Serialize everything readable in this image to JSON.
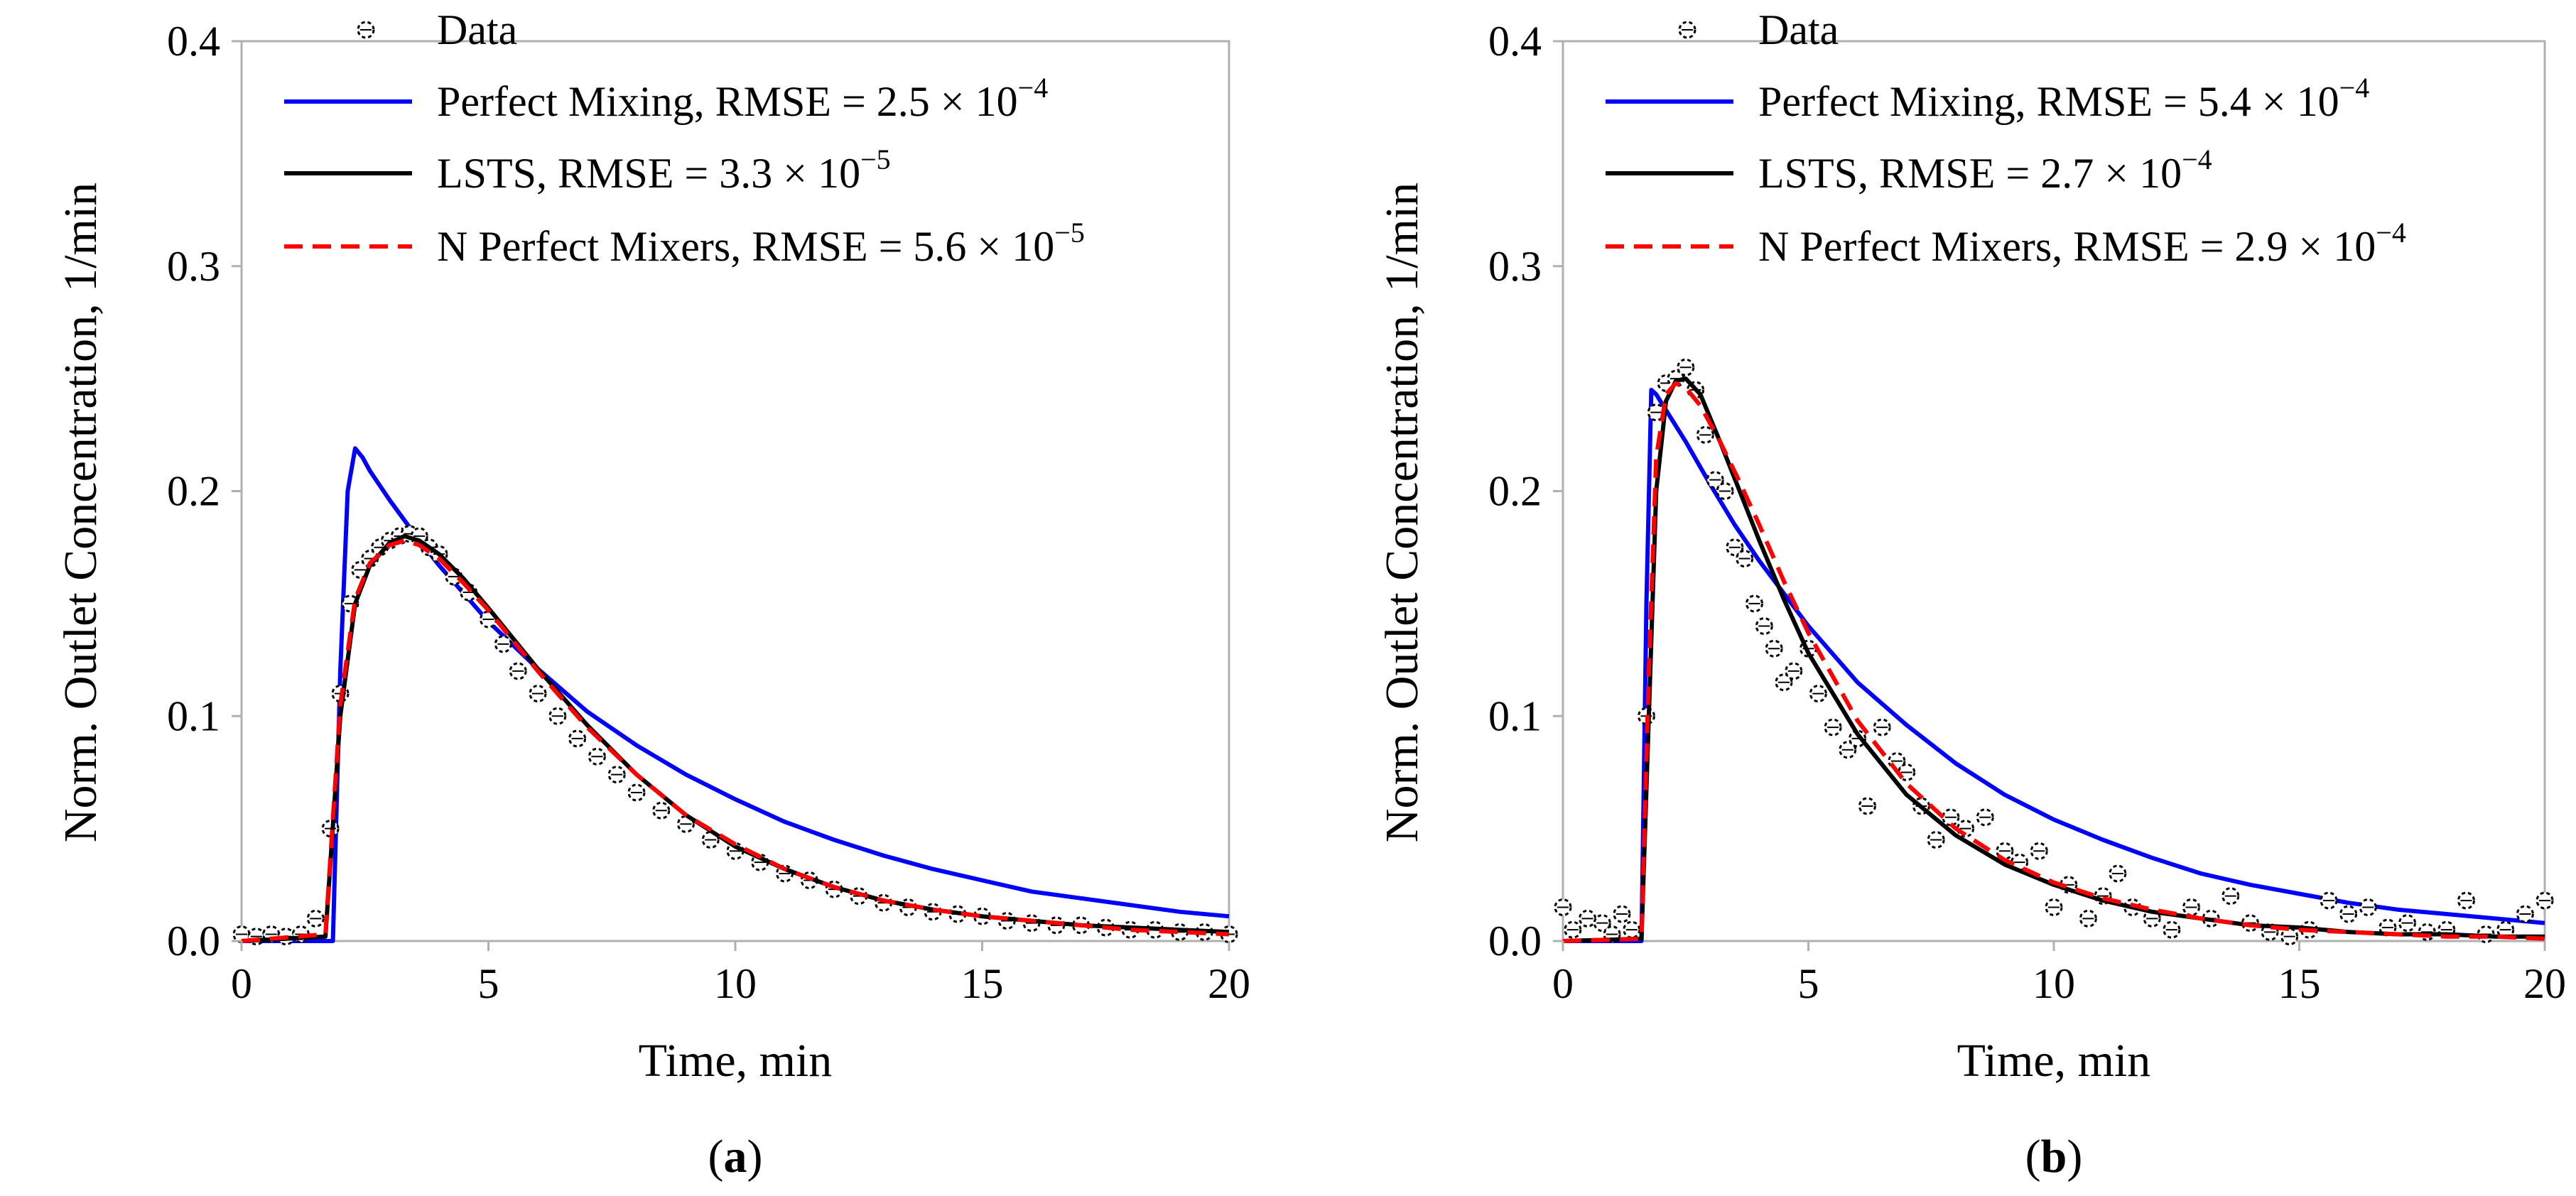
{
  "figure": {
    "panel_labels": [
      "a",
      "b"
    ]
  },
  "chart_data": [
    {
      "panel": "a",
      "type": "line",
      "xlabel": "Time,  min",
      "ylabel": "Norm. Outlet Concentration, 1/min",
      "xlim": [
        0,
        20
      ],
      "ylim": [
        0,
        0.4
      ],
      "xticks": [
        "0",
        "5",
        "10",
        "15",
        "20"
      ],
      "yticks": [
        "0.0",
        "0.1",
        "0.2",
        "0.3",
        "0.4"
      ],
      "grid": false,
      "legend_position": "top-left",
      "legend": [
        {
          "label": "Data",
          "base": "Data",
          "exp": ""
        },
        {
          "label": "Perfect Mixing, RMSE = 2.5 × 10−4",
          "base": "Perfect Mixing, RMSE = 2.5 × 10",
          "exp": "−4"
        },
        {
          "label": "LSTS, RMSE = 3.3 × 10−5",
          "base": "LSTS, RMSE = 3.3 × 10",
          "exp": "−5"
        },
        {
          "label": "N Perfect Mixers, RMSE = 5.6 × 10−5",
          "base": "N Perfect Mixers, RMSE = 5.6 × 10",
          "exp": "−5"
        }
      ],
      "series": [
        {
          "name": "Perfect Mixing",
          "style": "solid",
          "color": "#0000ff",
          "x": [
            0,
            1.85,
            2.0,
            2.15,
            2.3,
            2.45,
            2.6,
            3.0,
            3.5,
            4,
            5,
            6,
            7,
            8,
            9,
            10,
            11,
            12,
            13,
            14,
            15,
            16,
            17,
            18,
            19,
            20
          ],
          "y": [
            0,
            0,
            0.12,
            0.2,
            0.219,
            0.215,
            0.209,
            0.196,
            0.181,
            0.167,
            0.142,
            0.121,
            0.102,
            0.087,
            0.074,
            0.063,
            0.053,
            0.045,
            0.038,
            0.032,
            0.027,
            0.022,
            0.019,
            0.016,
            0.013,
            0.011
          ]
        },
        {
          "name": "LSTS",
          "style": "solid",
          "color": "#000000",
          "x": [
            0,
            1.7,
            2.0,
            2.3,
            2.6,
            3.0,
            3.3,
            3.6,
            4,
            4.5,
            5,
            6,
            7,
            8,
            9,
            10,
            11,
            12,
            13,
            14,
            15,
            16,
            17,
            18,
            19,
            20
          ],
          "y": [
            0,
            0.002,
            0.1,
            0.15,
            0.167,
            0.177,
            0.18,
            0.178,
            0.172,
            0.161,
            0.148,
            0.121,
            0.096,
            0.074,
            0.056,
            0.042,
            0.032,
            0.024,
            0.018,
            0.014,
            0.011,
            0.009,
            0.007,
            0.006,
            0.005,
            0.004
          ]
        },
        {
          "name": "N Perfect Mixers",
          "style": "dashed",
          "color": "#ff0000",
          "x": [
            0,
            1.7,
            2.0,
            2.3,
            2.6,
            3.0,
            3.3,
            3.6,
            4,
            4.5,
            5,
            6,
            7,
            8,
            9,
            10,
            11,
            12,
            13,
            14,
            15,
            16,
            17,
            18,
            19,
            20
          ],
          "y": [
            0,
            0.003,
            0.105,
            0.152,
            0.168,
            0.176,
            0.178,
            0.176,
            0.17,
            0.159,
            0.147,
            0.12,
            0.095,
            0.074,
            0.056,
            0.043,
            0.032,
            0.024,
            0.018,
            0.014,
            0.011,
            0.009,
            0.007,
            0.005,
            0.004,
            0.003
          ]
        },
        {
          "name": "Data",
          "style": "markers",
          "color": "#000000",
          "x": [
            0,
            0.3,
            0.6,
            0.9,
            1.2,
            1.5,
            1.8,
            2.0,
            2.2,
            2.4,
            2.6,
            2.8,
            3.0,
            3.2,
            3.4,
            3.6,
            3.8,
            4.0,
            4.3,
            4.6,
            5.0,
            5.3,
            5.6,
            6.0,
            6.4,
            6.8,
            7.2,
            7.6,
            8.0,
            8.5,
            9.0,
            9.5,
            10.0,
            10.5,
            11.0,
            11.5,
            12.0,
            12.5,
            13.0,
            13.5,
            14.0,
            14.5,
            15.0,
            15.5,
            16.0,
            16.5,
            17.0,
            17.5,
            18.0,
            18.5,
            19.0,
            19.5,
            20.0
          ],
          "y": [
            0.003,
            0.002,
            0.003,
            0.002,
            0.003,
            0.01,
            0.05,
            0.11,
            0.15,
            0.165,
            0.17,
            0.175,
            0.178,
            0.18,
            0.181,
            0.18,
            0.175,
            0.172,
            0.162,
            0.155,
            0.143,
            0.132,
            0.12,
            0.11,
            0.1,
            0.09,
            0.082,
            0.074,
            0.066,
            0.058,
            0.052,
            0.045,
            0.04,
            0.035,
            0.03,
            0.027,
            0.023,
            0.02,
            0.017,
            0.015,
            0.013,
            0.012,
            0.011,
            0.009,
            0.008,
            0.007,
            0.007,
            0.006,
            0.005,
            0.005,
            0.004,
            0.004,
            0.003
          ]
        }
      ]
    },
    {
      "panel": "b",
      "type": "line",
      "xlabel": "Time,  min",
      "ylabel": "Norm. Outlet Concentration, 1/min",
      "xlim": [
        0,
        20
      ],
      "ylim": [
        0,
        0.4
      ],
      "xticks": [
        "0",
        "5",
        "10",
        "15",
        "20"
      ],
      "yticks": [
        "0.0",
        "0.1",
        "0.2",
        "0.3",
        "0.4"
      ],
      "grid": false,
      "legend_position": "top-left",
      "legend": [
        {
          "label": "Data",
          "base": "Data",
          "exp": ""
        },
        {
          "label": "Perfect Mixing, RMSE = 5.4 × 10−4",
          "base": "Perfect Mixing, RMSE = 5.4 × 10",
          "exp": "−4"
        },
        {
          "label": "LSTS, RMSE = 2.7 × 10−4",
          "base": "LSTS, RMSE = 2.7 × 10",
          "exp": "−4"
        },
        {
          "label": "N Perfect Mixers, RMSE = 2.9 × 10−4",
          "base": "N Perfect Mixers, RMSE = 2.9 × 10",
          "exp": "−4"
        }
      ],
      "series": [
        {
          "name": "Perfect Mixing",
          "style": "solid",
          "color": "#0000ff",
          "x": [
            0,
            1.6,
            1.7,
            1.8,
            1.9,
            2.1,
            2.5,
            3,
            3.5,
            4,
            5,
            6,
            7,
            8,
            9,
            10,
            11,
            12,
            13,
            14,
            15,
            16,
            17,
            18,
            19,
            20
          ],
          "y": [
            0,
            0,
            0.15,
            0.245,
            0.243,
            0.236,
            0.222,
            0.203,
            0.185,
            0.169,
            0.14,
            0.115,
            0.096,
            0.079,
            0.065,
            0.054,
            0.045,
            0.037,
            0.03,
            0.025,
            0.021,
            0.017,
            0.014,
            0.012,
            0.01,
            0.008
          ]
        },
        {
          "name": "LSTS",
          "style": "solid",
          "color": "#000000",
          "x": [
            0,
            1.6,
            1.75,
            1.9,
            2.1,
            2.3,
            2.5,
            2.8,
            3.2,
            3.6,
            4,
            4.5,
            5,
            6,
            7,
            8,
            9,
            10,
            11,
            12,
            13,
            14,
            15,
            16,
            17,
            18,
            19,
            20
          ],
          "y": [
            0,
            0.001,
            0.1,
            0.2,
            0.24,
            0.249,
            0.25,
            0.243,
            0.222,
            0.2,
            0.178,
            0.152,
            0.128,
            0.092,
            0.065,
            0.047,
            0.034,
            0.025,
            0.018,
            0.013,
            0.01,
            0.007,
            0.006,
            0.004,
            0.003,
            0.003,
            0.002,
            0.002
          ]
        },
        {
          "name": "N Perfect Mixers",
          "style": "dashed",
          "color": "#ff0000",
          "x": [
            0,
            1.6,
            1.75,
            1.9,
            2.1,
            2.3,
            2.5,
            2.8,
            3.2,
            3.6,
            4,
            4.5,
            5,
            6,
            7,
            8,
            9,
            10,
            11,
            12,
            13,
            14,
            15,
            16,
            17,
            18,
            19,
            20
          ],
          "y": [
            0,
            0.001,
            0.12,
            0.215,
            0.243,
            0.248,
            0.246,
            0.238,
            0.222,
            0.204,
            0.185,
            0.16,
            0.137,
            0.098,
            0.07,
            0.05,
            0.036,
            0.026,
            0.019,
            0.014,
            0.01,
            0.007,
            0.005,
            0.004,
            0.003,
            0.002,
            0.002,
            0.001
          ]
        },
        {
          "name": "Data",
          "style": "markers",
          "color": "#000000",
          "x": [
            0,
            0.2,
            0.5,
            0.8,
            1.0,
            1.2,
            1.4,
            1.7,
            1.9,
            2.1,
            2.3,
            2.5,
            2.7,
            2.9,
            3.1,
            3.3,
            3.5,
            3.7,
            3.9,
            4.1,
            4.3,
            4.5,
            4.7,
            5.0,
            5.2,
            5.5,
            5.8,
            6.0,
            6.2,
            6.5,
            6.8,
            7.0,
            7.3,
            7.6,
            7.9,
            8.2,
            8.6,
            9.0,
            9.3,
            9.7,
            10.0,
            10.3,
            10.7,
            11.0,
            11.3,
            11.6,
            12.0,
            12.4,
            12.8,
            13.2,
            13.6,
            14.0,
            14.4,
            14.8,
            15.2,
            15.6,
            16.0,
            16.4,
            16.8,
            17.2,
            17.6,
            18.0,
            18.4,
            18.8,
            19.2,
            19.6,
            20.0
          ],
          "y": [
            0.015,
            0.005,
            0.01,
            0.008,
            0.003,
            0.012,
            0.005,
            0.1,
            0.235,
            0.248,
            0.25,
            0.255,
            0.245,
            0.225,
            0.205,
            0.2,
            0.175,
            0.17,
            0.15,
            0.14,
            0.13,
            0.115,
            0.12,
            0.13,
            0.11,
            0.095,
            0.085,
            0.09,
            0.06,
            0.095,
            0.08,
            0.075,
            0.06,
            0.045,
            0.055,
            0.05,
            0.055,
            0.04,
            0.035,
            0.04,
            0.015,
            0.025,
            0.01,
            0.02,
            0.03,
            0.015,
            0.01,
            0.005,
            0.015,
            0.01,
            0.02,
            0.008,
            0.004,
            0.002,
            0.005,
            0.018,
            0.012,
            0.015,
            0.006,
            0.008,
            0.004,
            0.005,
            0.018,
            0.003,
            0.005,
            0.012,
            0.018
          ]
        }
      ]
    }
  ]
}
